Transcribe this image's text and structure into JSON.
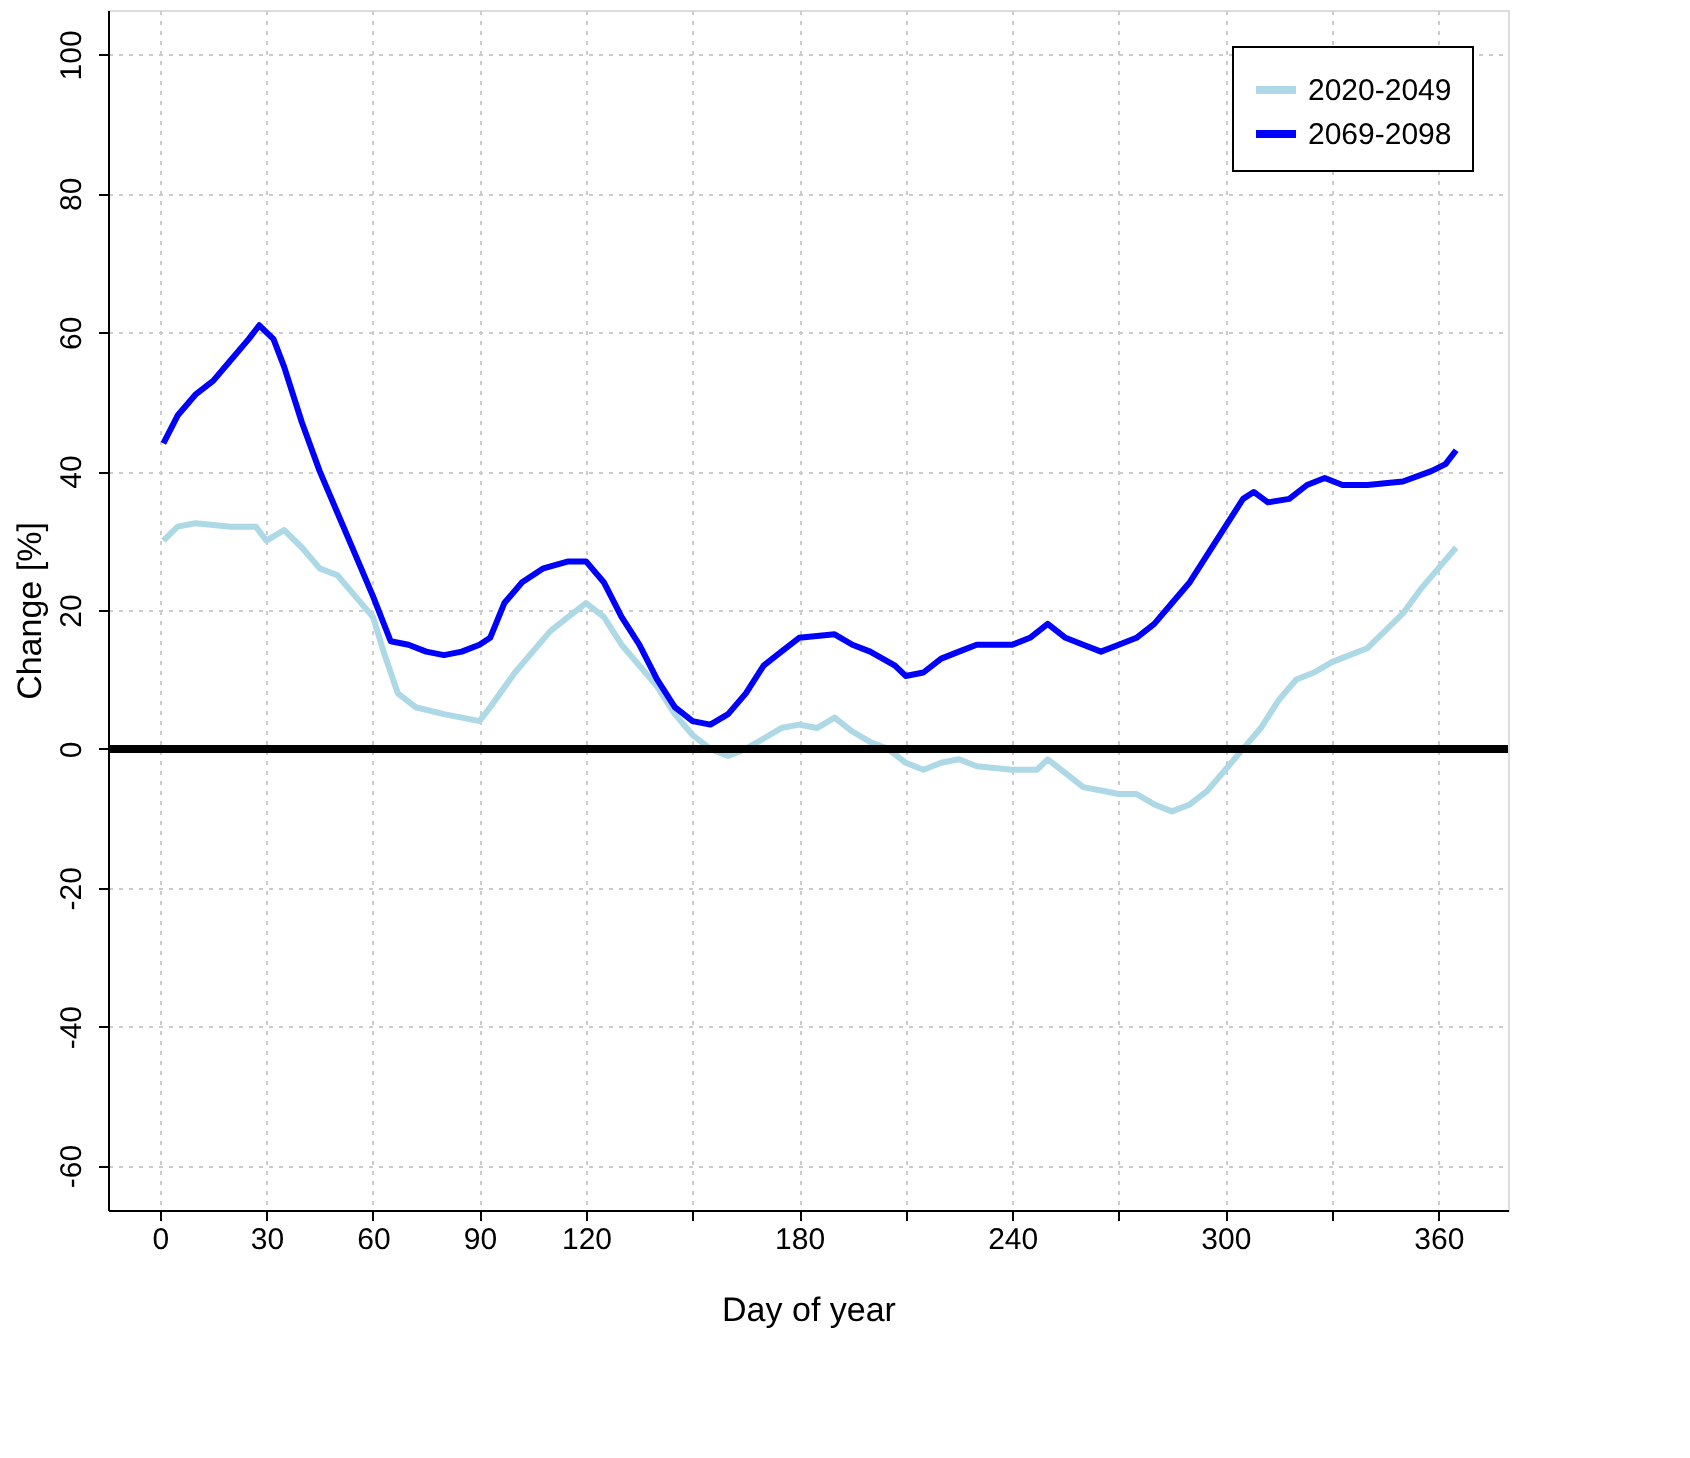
{
  "chart_data": {
    "type": "line",
    "xlabel": "Day of year",
    "ylabel": "Change [%]",
    "xlim": [
      -14.6,
      379.6
    ],
    "ylim": [
      -66.4,
      106.4
    ],
    "xticks": [
      0,
      30,
      60,
      90,
      120,
      {
        "value": 150,
        "label": null
      },
      180,
      {
        "value": 210,
        "label": null
      },
      240,
      {
        "value": 270,
        "label": null
      },
      300,
      {
        "value": 330,
        "label": null
      },
      360
    ],
    "yticks": [
      -60,
      -40,
      -20,
      0,
      20,
      40,
      60,
      80,
      100
    ],
    "grid": true,
    "legend": "top right",
    "line_style": "solid",
    "marker": "none",
    "ref_lines": [
      {
        "axis": "y",
        "value": 0,
        "color": "#000000"
      }
    ],
    "series": [
      {
        "name": "2020-2049",
        "color": "#add8e6",
        "x": [
          1,
          5,
          10,
          20,
          27,
          30,
          35,
          40,
          45,
          50,
          55,
          60,
          63,
          67,
          72,
          80,
          90,
          93,
          100,
          105,
          110,
          115,
          120,
          125,
          130,
          135,
          140,
          145,
          150,
          155,
          160,
          165,
          170,
          175,
          180,
          185,
          190,
          195,
          200,
          205,
          210,
          215,
          220,
          225,
          230,
          240,
          247,
          250,
          255,
          260,
          265,
          270,
          275,
          280,
          285,
          290,
          295,
          300,
          305,
          310,
          315,
          320,
          325,
          330,
          335,
          340,
          345,
          350,
          355,
          360,
          365
        ],
        "values": [
          30,
          32,
          32.5,
          32,
          32,
          30,
          31.5,
          29,
          26,
          25,
          22,
          19,
          14,
          8,
          6,
          5,
          4,
          6,
          11,
          14,
          17,
          19,
          21,
          19,
          15,
          12,
          9,
          5,
          2,
          0,
          -1,
          0,
          1.5,
          3,
          3.5,
          3,
          4.5,
          2.5,
          1,
          0,
          -2,
          -3,
          -2,
          -1.5,
          -2.5,
          -3,
          -3,
          -1.5,
          -3.5,
          -5.5,
          -6,
          -6.5,
          -6.5,
          -8,
          -9,
          -8,
          -6,
          -3,
          0,
          3,
          7,
          10,
          11,
          12.5,
          13.5,
          14.5,
          17,
          19.5,
          23,
          26,
          29
        ]
      },
      {
        "name": "2069-2098",
        "color": "#0000ff",
        "x": [
          1,
          5,
          10,
          15,
          20,
          25,
          28,
          32,
          35,
          40,
          45,
          50,
          55,
          60,
          65,
          70,
          75,
          80,
          85,
          90,
          93,
          97,
          102,
          108,
          115,
          120,
          125,
          130,
          135,
          140,
          145,
          150,
          155,
          160,
          165,
          170,
          175,
          180,
          190,
          195,
          200,
          207,
          210,
          215,
          220,
          225,
          230,
          240,
          245,
          250,
          255,
          260,
          265,
          270,
          275,
          280,
          285,
          290,
          295,
          300,
          305,
          308,
          312,
          318,
          323,
          328,
          333,
          340,
          350,
          358,
          362,
          365
        ],
        "values": [
          44,
          48,
          51,
          53,
          56,
          59,
          61,
          59,
          55,
          47,
          40,
          34,
          28,
          22,
          15.5,
          15,
          14,
          13.5,
          14,
          15,
          16,
          21,
          24,
          26,
          27,
          27,
          24,
          19,
          15,
          10,
          6,
          4,
          3.5,
          5,
          8,
          12,
          14,
          16,
          16.5,
          15,
          14,
          12,
          10.5,
          11,
          13,
          14,
          15,
          15,
          16,
          18,
          16,
          15,
          14,
          15,
          16,
          18,
          21,
          24,
          28,
          32,
          36,
          37,
          35.5,
          36,
          38,
          39,
          38,
          38,
          38.5,
          40,
          41,
          43
        ]
      }
    ]
  }
}
